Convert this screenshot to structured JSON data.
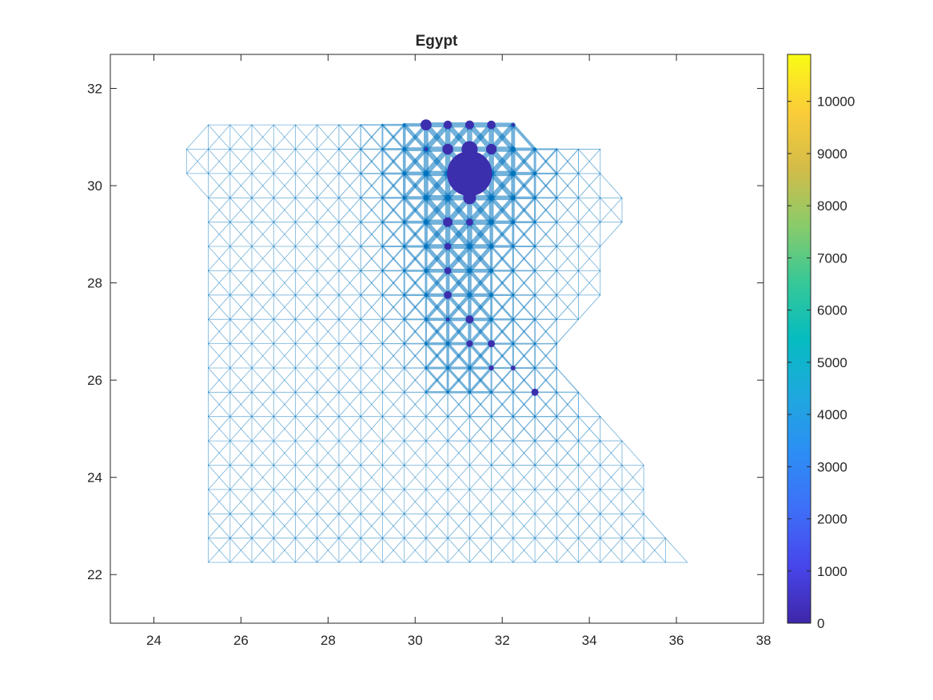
{
  "chart_data": {
    "type": "network-map",
    "title": "Egypt",
    "xlabel": "",
    "ylabel": "",
    "xlim": [
      23,
      38
    ],
    "ylim": [
      21,
      32.7
    ],
    "xticks": [
      24,
      26,
      28,
      30,
      32,
      34,
      36,
      38
    ],
    "yticks": [
      22,
      24,
      26,
      28,
      30,
      32
    ],
    "grid": false,
    "edge_color": "#0072BD",
    "node_color": "#3b2fae",
    "grid_spacing_deg": 0.5,
    "land_rows": [
      {
        "y": 31.25,
        "x_min": 25.25,
        "x_max": 32.25
      },
      {
        "y": 30.75,
        "x_min": 24.75,
        "x_max": 34.25
      },
      {
        "y": 30.25,
        "x_min": 24.75,
        "x_max": 34.25
      },
      {
        "y": 29.75,
        "x_min": 25.25,
        "x_max": 34.75
      },
      {
        "y": 29.25,
        "x_min": 25.25,
        "x_max": 34.75
      },
      {
        "y": 28.75,
        "x_min": 25.25,
        "x_max": 34.25
      },
      {
        "y": 28.25,
        "x_min": 25.25,
        "x_max": 34.25
      },
      {
        "y": 27.75,
        "x_min": 25.25,
        "x_max": 34.25
      },
      {
        "y": 27.25,
        "x_min": 25.25,
        "x_max": 33.75
      },
      {
        "y": 26.75,
        "x_min": 25.25,
        "x_max": 33.25
      },
      {
        "y": 26.25,
        "x_min": 25.25,
        "x_max": 33.25
      },
      {
        "y": 25.75,
        "x_min": 25.25,
        "x_max": 33.75
      },
      {
        "y": 25.25,
        "x_min": 25.25,
        "x_max": 34.25
      },
      {
        "y": 24.75,
        "x_min": 25.25,
        "x_max": 34.75
      },
      {
        "y": 24.25,
        "x_min": 25.25,
        "x_max": 35.25
      },
      {
        "y": 23.75,
        "x_min": 25.25,
        "x_max": 35.25
      },
      {
        "y": 23.25,
        "x_min": 25.25,
        "x_max": 35.25
      },
      {
        "y": 22.75,
        "x_min": 25.25,
        "x_max": 35.75
      },
      {
        "y": 22.25,
        "x_min": 25.25,
        "x_max": 36.25
      }
    ],
    "nodes": [
      {
        "x": 31.25,
        "y": 30.25,
        "value": 10900
      },
      {
        "x": 31.25,
        "y": 30.75,
        "value": 1400
      },
      {
        "x": 31.25,
        "y": 29.75,
        "value": 900
      },
      {
        "x": 30.25,
        "y": 31.25,
        "value": 650
      },
      {
        "x": 30.75,
        "y": 30.75,
        "value": 620
      },
      {
        "x": 31.75,
        "y": 30.75,
        "value": 600
      },
      {
        "x": 30.75,
        "y": 29.25,
        "value": 480
      },
      {
        "x": 30.75,
        "y": 31.25,
        "value": 380
      },
      {
        "x": 31.25,
        "y": 31.25,
        "value": 420
      },
      {
        "x": 31.75,
        "y": 31.25,
        "value": 380
      },
      {
        "x": 31.25,
        "y": 29.25,
        "value": 260
      },
      {
        "x": 30.75,
        "y": 28.75,
        "value": 250
      },
      {
        "x": 30.75,
        "y": 28.25,
        "value": 250
      },
      {
        "x": 30.75,
        "y": 27.75,
        "value": 330
      },
      {
        "x": 31.25,
        "y": 27.25,
        "value": 340
      },
      {
        "x": 31.25,
        "y": 26.75,
        "value": 230
      },
      {
        "x": 31.75,
        "y": 26.75,
        "value": 260
      },
      {
        "x": 31.75,
        "y": 26.25,
        "value": 130
      },
      {
        "x": 32.25,
        "y": 26.25,
        "value": 120
      },
      {
        "x": 32.75,
        "y": 25.75,
        "value": 280
      },
      {
        "x": 32.25,
        "y": 31.25,
        "value": 50
      },
      {
        "x": 30.25,
        "y": 30.75,
        "value": 50
      },
      {
        "x": 30.75,
        "y": 27.25,
        "value": 50
      }
    ],
    "colorbar": {
      "min": 0,
      "max": 10900,
      "ticks": [
        0,
        1000,
        2000,
        3000,
        4000,
        5000,
        6000,
        7000,
        8000,
        9000,
        10000
      ],
      "colormap": "parula"
    }
  }
}
